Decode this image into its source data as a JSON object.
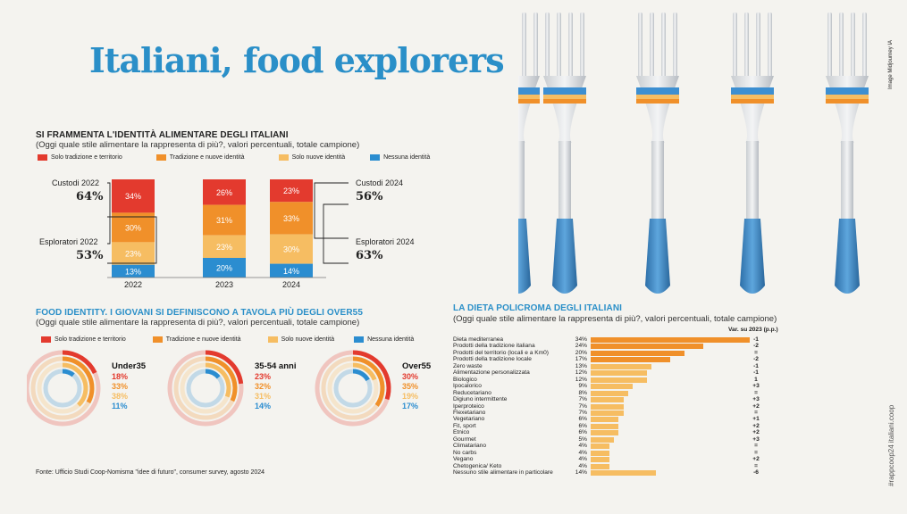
{
  "title": "Italiani, food explorers",
  "image_credit": "Image Midjourney IA",
  "side_text": "#rappcoop24 italiani.coop",
  "source": "Fonte: Ufficio Studi Coop-Nomisma \"idee di futuro\", consumer survey, agosto 2024",
  "colors": {
    "red": "#e33a2e",
    "orange": "#f0902a",
    "yellow": "#f6bd62",
    "blue": "#2b8dd0"
  },
  "section1": {
    "title": "SI FRAMMENTA L'IDENTITÀ ALIMENTARE DEGLI ITALIANI",
    "subtitle": "(Oggi quale stile alimentare la rappresenta di più?, valori percentuali, totale campione)",
    "legend": [
      "Solo tradizione e territorio",
      "Tradizione e nuove identità",
      "Solo nuove identità",
      "Nessuna identità"
    ],
    "custodi_2022_label": "Custodi 2022",
    "custodi_2022_value": "64%",
    "esploratori_2022_label": "Esploratori 2022",
    "esploratori_2022_value": "53%",
    "custodi_2024_label": "Custodi 2024",
    "custodi_2024_value": "56%",
    "esploratori_2024_label": "Esploratori 2024",
    "esploratori_2024_value": "63%"
  },
  "section2": {
    "title": "FOOD IDENTITY. I GIOVANI SI DEFINISCONO A TAVOLA PIÙ DEGLI OVER55",
    "subtitle": "(Oggi quale stile alimentare la rappresenta di più?, valori percentuali, totale campione)",
    "legend": [
      "Solo tradizione e territorio",
      "Tradizione e nuove identità",
      "Solo nuove identità",
      "Nessuna identità"
    ]
  },
  "section3": {
    "title": "LA DIETA POLICROMA DEGLI ITALIANI",
    "subtitle": "(Oggi quale stile alimentare la rappresenta di più?, valori percentuali, totale campione)",
    "var_header": "Var. su 2023 (p.p.)"
  },
  "chart_data": [
    {
      "type": "bar",
      "stacked": true,
      "title": "SI FRAMMENTA L'IDENTITÀ ALIMENTARE DEGLI ITALIANI",
      "categories": [
        "2022",
        "2023",
        "2024"
      ],
      "series": [
        {
          "name": "Solo tradizione e territorio",
          "values": [
            34,
            26,
            23
          ],
          "labels": [
            "34%",
            "26%",
            "23%"
          ]
        },
        {
          "name": "Tradizione e nuove identità",
          "values": [
            30,
            31,
            33
          ],
          "labels": [
            "30%",
            "31%",
            "33%"
          ]
        },
        {
          "name": "Solo nuove identità",
          "values": [
            23,
            23,
            30
          ],
          "labels": [
            "23%",
            "23%",
            "30%"
          ]
        },
        {
          "name": "Nessuna identità",
          "values": [
            13,
            20,
            14
          ],
          "labels": [
            "13%",
            "20%",
            "14%"
          ]
        }
      ]
    },
    {
      "type": "pie",
      "title": "FOOD IDENTITY. I GIOVANI SI DEFINISCONO A TAVOLA PIÙ DEGLI OVER55",
      "groups": [
        {
          "name": "Under35",
          "values": [
            18,
            33,
            38,
            11
          ],
          "labels": [
            "18%",
            "33%",
            "38%",
            "11%"
          ]
        },
        {
          "name": "35-54 anni",
          "values": [
            23,
            32,
            31,
            14
          ],
          "labels": [
            "23%",
            "32%",
            "31%",
            "14%"
          ]
        },
        {
          "name": "Over55",
          "values": [
            30,
            35,
            19,
            17
          ],
          "labels": [
            "30%",
            "35%",
            "19%",
            "17%"
          ]
        }
      ],
      "series_names": [
        "Solo tradizione e territorio",
        "Tradizione e nuove identità",
        "Solo nuove identità",
        "Nessuna identità"
      ]
    },
    {
      "type": "bar",
      "orientation": "horizontal",
      "title": "LA DIETA POLICROMA DEGLI ITALIANI",
      "categories": [
        "Dieta mediterranea",
        "Prodotti della tradizione italiana",
        "Prodotti del territorio (locali e a Km0)",
        "Prodotti della tradizione locale",
        "Zero waste",
        "Alimentazione personalizzata",
        "Biologico",
        "Ipocalorico",
        "Reducetariano",
        "Digiuno intermittente",
        "Iperproteico",
        "Flexetariano",
        "Vegetariano",
        "Fit, sport",
        "Etnico",
        "Gourmet",
        "Climatariano",
        "No carbs",
        "Vegano",
        "Chetogenica/ Keto",
        "Nessuno stile alimentare in particolare"
      ],
      "values": [
        34,
        24,
        20,
        17,
        13,
        12,
        12,
        9,
        8,
        7,
        7,
        7,
        6,
        6,
        6,
        5,
        4,
        4,
        4,
        4,
        14
      ],
      "value_labels": [
        "34%",
        "24%",
        "20%",
        "17%",
        "13%",
        "12%",
        "12%",
        "9%",
        "8%",
        "7%",
        "7%",
        "7%",
        "6%",
        "6%",
        "6%",
        "5%",
        "4%",
        "4%",
        "4%",
        "4%",
        "14%"
      ],
      "variations": [
        "-1",
        "-2",
        "=",
        "-2",
        "-1",
        "-1",
        "1",
        "+3",
        "=",
        "+3",
        "+2",
        "=",
        "+1",
        "+2",
        "+2",
        "+3",
        "=",
        "=",
        "+2",
        "=",
        "-6"
      ],
      "highlight_count": 4
    }
  ]
}
